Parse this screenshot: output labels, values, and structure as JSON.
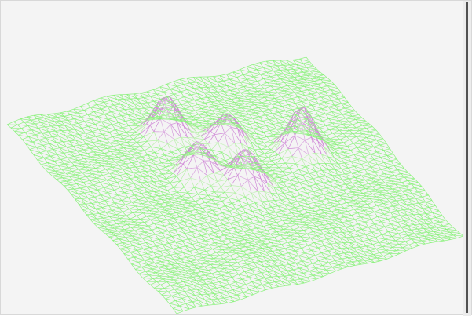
{
  "scene": {
    "surface_type": "wireframe-3d-surface",
    "background_color": "#f4f4f4",
    "mesh_color": "#8df27f",
    "mesh_secondary_color": "#b7f0a8",
    "peak_color": "#d08ad7",
    "peak_highlight_color": "#f6f6f6",
    "mesh_lines": 45,
    "peak_count": 5
  }
}
